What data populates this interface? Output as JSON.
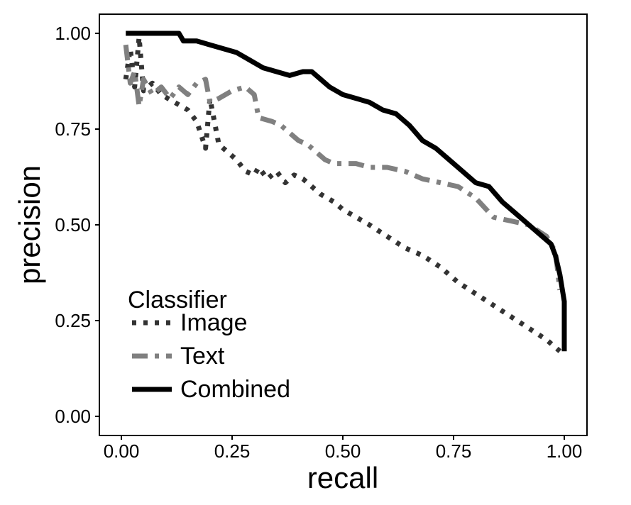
{
  "chart_data": {
    "type": "line",
    "title": "",
    "xlabel": "recall",
    "ylabel": "precision",
    "xlim": [
      0,
      1
    ],
    "ylim": [
      0,
      1
    ],
    "xticks": [
      "0.00",
      "0.25",
      "0.50",
      "0.75",
      "1.00"
    ],
    "yticks": [
      "0.00",
      "0.25",
      "0.50",
      "0.75",
      "1.00"
    ],
    "grid": false,
    "legend": {
      "title": "Classifier",
      "placement": "bottom-left",
      "entries": [
        "Image",
        "Text",
        "Combined"
      ]
    },
    "series": [
      {
        "name": "Image",
        "color": "#333333",
        "dash": "dotted",
        "x": [
          0.01,
          0.02,
          0.03,
          0.04,
          0.05,
          0.07,
          0.09,
          0.12,
          0.15,
          0.17,
          0.19,
          0.2,
          0.22,
          0.24,
          0.26,
          0.28,
          0.3,
          0.31,
          0.33,
          0.35,
          0.37,
          0.39,
          0.41,
          0.43,
          0.45,
          0.48,
          0.5,
          0.53,
          0.56,
          0.6,
          0.64,
          0.68,
          0.72,
          0.76,
          0.8,
          0.84,
          0.88,
          0.92,
          0.96,
          0.99
        ],
        "y": [
          0.88,
          0.96,
          0.86,
          0.99,
          0.85,
          0.87,
          0.84,
          0.82,
          0.8,
          0.77,
          0.7,
          0.83,
          0.71,
          0.69,
          0.67,
          0.64,
          0.63,
          0.65,
          0.62,
          0.64,
          0.61,
          0.63,
          0.62,
          0.6,
          0.58,
          0.56,
          0.54,
          0.52,
          0.5,
          0.47,
          0.44,
          0.42,
          0.39,
          0.35,
          0.32,
          0.29,
          0.26,
          0.23,
          0.2,
          0.17
        ]
      },
      {
        "name": "Text",
        "color": "#808080",
        "dash": "dashed",
        "x": [
          0.01,
          0.02,
          0.03,
          0.04,
          0.05,
          0.07,
          0.09,
          0.11,
          0.13,
          0.15,
          0.17,
          0.19,
          0.2,
          0.22,
          0.25,
          0.28,
          0.3,
          0.31,
          0.34,
          0.36,
          0.38,
          0.4,
          0.42,
          0.44,
          0.46,
          0.48,
          0.5,
          0.53,
          0.56,
          0.6,
          0.64,
          0.68,
          0.72,
          0.76,
          0.8,
          0.84,
          0.88,
          0.92,
          0.96,
          0.98,
          0.99
        ],
        "y": [
          0.97,
          0.87,
          0.9,
          0.81,
          0.88,
          0.84,
          0.86,
          0.83,
          0.86,
          0.84,
          0.87,
          0.88,
          0.82,
          0.83,
          0.85,
          0.86,
          0.84,
          0.78,
          0.77,
          0.76,
          0.74,
          0.72,
          0.71,
          0.69,
          0.67,
          0.66,
          0.66,
          0.66,
          0.65,
          0.65,
          0.64,
          0.62,
          0.61,
          0.6,
          0.57,
          0.52,
          0.51,
          0.5,
          0.47,
          0.43,
          0.33
        ]
      },
      {
        "name": "Combined",
        "color": "#000000",
        "dash": "solid",
        "x": [
          0.01,
          0.05,
          0.1,
          0.13,
          0.14,
          0.17,
          0.2,
          0.23,
          0.26,
          0.29,
          0.32,
          0.35,
          0.38,
          0.41,
          0.43,
          0.45,
          0.47,
          0.5,
          0.53,
          0.56,
          0.59,
          0.62,
          0.65,
          0.68,
          0.71,
          0.74,
          0.77,
          0.8,
          0.83,
          0.86,
          0.89,
          0.92,
          0.95,
          0.97,
          0.98,
          0.99,
          1.0,
          1.0
        ],
        "y": [
          1.0,
          1.0,
          1.0,
          1.0,
          0.98,
          0.98,
          0.97,
          0.96,
          0.95,
          0.93,
          0.91,
          0.9,
          0.89,
          0.9,
          0.9,
          0.88,
          0.86,
          0.84,
          0.83,
          0.82,
          0.8,
          0.79,
          0.76,
          0.72,
          0.7,
          0.67,
          0.64,
          0.61,
          0.6,
          0.56,
          0.53,
          0.5,
          0.47,
          0.45,
          0.42,
          0.37,
          0.3,
          0.17
        ]
      }
    ]
  }
}
